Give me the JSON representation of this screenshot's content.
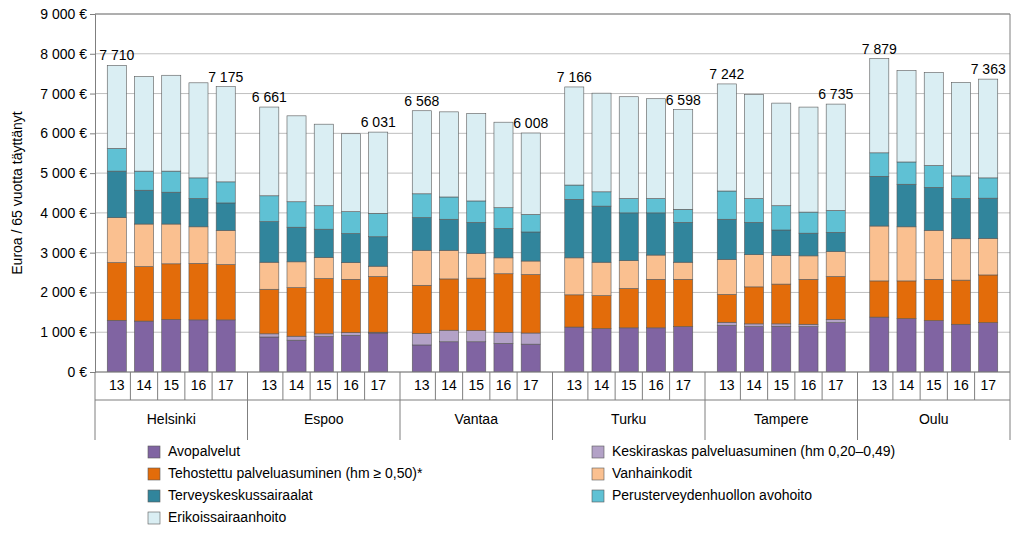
{
  "chart_data": {
    "type": "bar",
    "stacked": true,
    "grid": true,
    "y_label": "Euroa / 65 vuotta täyttänyt",
    "categories": [
      "13",
      "14",
      "15",
      "16",
      "17",
      "13",
      "14",
      "15",
      "16",
      "17",
      "13",
      "14",
      "15",
      "16",
      "17",
      "13",
      "14",
      "15",
      "16",
      "17",
      "13",
      "14",
      "15",
      "16",
      "17",
      "13",
      "14",
      "15",
      "16",
      "17"
    ],
    "groups": [
      {
        "name": "Helsinki",
        "start": 0,
        "end": 4
      },
      {
        "name": "Espoo",
        "start": 5,
        "end": 9
      },
      {
        "name": "Vantaa",
        "start": 10,
        "end": 14
      },
      {
        "name": "Turku",
        "start": 15,
        "end": 19
      },
      {
        "name": "Tampere",
        "start": 20,
        "end": 24
      },
      {
        "name": "Oulu",
        "start": 25,
        "end": 29
      }
    ],
    "ylim": [
      0,
      9000
    ],
    "yticks": [
      {
        "value": 0,
        "label": "0 €"
      },
      {
        "value": 1000,
        "label": "1 000 €"
      },
      {
        "value": 2000,
        "label": "2 000 €"
      },
      {
        "value": 3000,
        "label": "3 000 €"
      },
      {
        "value": 4000,
        "label": "4 000 €"
      },
      {
        "value": 5000,
        "label": "5 000 €"
      },
      {
        "value": 6000,
        "label": "6 000 €"
      },
      {
        "value": 7000,
        "label": "7 000 €"
      },
      {
        "value": 8000,
        "label": "8 000 €"
      },
      {
        "value": 9000,
        "label": "9 000 €"
      }
    ],
    "series": [
      {
        "name": "Avopalvelut",
        "color": "#8064a2",
        "values": [
          1300,
          1280,
          1320,
          1310,
          1310,
          880,
          800,
          890,
          920,
          980,
          680,
          760,
          760,
          720,
          700,
          1130,
          1090,
          1110,
          1110,
          1140,
          1170,
          1140,
          1150,
          1140,
          1240,
          1380,
          1340,
          1290,
          1200,
          1240
        ]
      },
      {
        "name": "Keskiraskas palveluasuminen (hm 0,20–0,49)",
        "color": "#b3a2c7",
        "values": [
          0,
          0,
          0,
          0,
          0,
          80,
          100,
          70,
          70,
          20,
          290,
          290,
          280,
          270,
          280,
          0,
          0,
          0,
          0,
          0,
          80,
          70,
          60,
          60,
          80,
          0,
          0,
          0,
          0,
          0
        ]
      },
      {
        "name": "Tehostettu palveluasuminen (hm ≥ 0,50)*",
        "color": "#e36c0a",
        "values": [
          1450,
          1370,
          1400,
          1420,
          1390,
          1120,
          1220,
          1390,
          1340,
          1400,
          1210,
          1290,
          1320,
          1480,
          1470,
          810,
          830,
          990,
          1220,
          1190,
          700,
          930,
          1000,
          1130,
          1080,
          910,
          950,
          1040,
          1110,
          1200
        ]
      },
      {
        "name": "Vanhainkodit",
        "color": "#fac090",
        "values": [
          1130,
          1070,
          1000,
          920,
          860,
          680,
          650,
          530,
          420,
          260,
          880,
          720,
          620,
          400,
          340,
          930,
          840,
          700,
          610,
          430,
          880,
          810,
          720,
          590,
          630,
          1380,
          1360,
          1230,
          1040,
          920
        ]
      },
      {
        "name": "Terveyskeskussairaalat",
        "color": "#31859c",
        "values": [
          1170,
          850,
          800,
          710,
          690,
          1020,
          870,
          710,
          730,
          740,
          820,
          780,
          780,
          740,
          730,
          1470,
          1410,
          1200,
          1060,
          1000,
          1010,
          810,
          640,
          570,
          480,
          1250,
          1070,
          1080,
          1010,
          1010
        ]
      },
      {
        "name": "Perusterveydenhuollon avohoito",
        "color": "#5fc1d4",
        "values": [
          570,
          480,
          530,
          520,
          530,
          650,
          640,
          590,
          550,
          590,
          600,
          560,
          540,
          520,
          440,
          360,
          360,
          360,
          360,
          330,
          710,
          600,
          610,
          530,
          550,
          590,
          560,
          550,
          570,
          510
        ]
      },
      {
        "name": "Erikoissairaanhoito",
        "color": "#daeef3",
        "values": [
          2090,
          2380,
          2410,
          2390,
          2395,
          2231,
          2160,
          2050,
          1960,
          2041,
          2088,
          2140,
          2200,
          2150,
          2048,
          2466,
          2480,
          2560,
          2510,
          2508,
          2692,
          2620,
          2580,
          2640,
          2675,
          2369,
          2300,
          2340,
          2350,
          2483
        ]
      }
    ],
    "annotations": [
      {
        "category": 0,
        "value": 7710,
        "label": "7 710"
      },
      {
        "category": 4,
        "value": 7175,
        "label": "7 175"
      },
      {
        "category": 5,
        "value": 6661,
        "label": "6 661"
      },
      {
        "category": 9,
        "value": 6031,
        "label": "6 031"
      },
      {
        "category": 10,
        "value": 6568,
        "label": "6 568"
      },
      {
        "category": 14,
        "value": 6008,
        "label": "6 008"
      },
      {
        "category": 15,
        "value": 7166,
        "label": "7 166"
      },
      {
        "category": 19,
        "value": 6598,
        "label": "6 598"
      },
      {
        "category": 20,
        "value": 7242,
        "label": "7 242"
      },
      {
        "category": 24,
        "value": 6735,
        "label": "6 735"
      },
      {
        "category": 25,
        "value": 7879,
        "label": "7 879"
      },
      {
        "category": 29,
        "value": 7363,
        "label": "7 363"
      }
    ]
  }
}
